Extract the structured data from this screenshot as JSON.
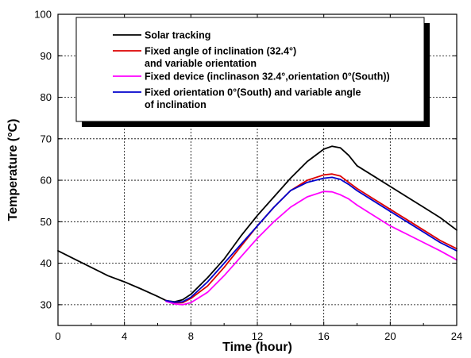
{
  "chart_data": {
    "type": "line",
    "xlabel": "Time (hour)",
    "ylabel": "Temperature (°C)",
    "xlim": [
      0,
      24
    ],
    "ylim": [
      25,
      100
    ],
    "xticks": [
      0,
      4,
      8,
      12,
      16,
      20,
      24
    ],
    "yticks": [
      30,
      40,
      50,
      60,
      70,
      80,
      90,
      100
    ],
    "grid": true,
    "legend_position": "top-right",
    "series": [
      {
        "name": "Solar tracking",
        "color": "#000000",
        "x": [
          0,
          1,
          2,
          3,
          4,
          5,
          6,
          6.5,
          7,
          7.5,
          8,
          9,
          10,
          11,
          12,
          13,
          14,
          15,
          16,
          16.5,
          17,
          17.5,
          18,
          19,
          20,
          21,
          22,
          23,
          24
        ],
        "y": [
          43,
          41,
          39,
          37,
          35.5,
          33.8,
          32,
          31,
          30.7,
          31.2,
          32.5,
          36.5,
          41,
          46.5,
          51.5,
          56,
          60.5,
          64.5,
          67.5,
          68.2,
          67.8,
          66,
          63.5,
          61,
          58.5,
          56,
          53.5,
          51,
          48
        ]
      },
      {
        "name": "Fixed angle of inclination (32.4°) and variable orientation",
        "color": "#dd0000",
        "x": [
          6.5,
          7,
          7.5,
          8,
          9,
          10,
          11,
          12,
          13,
          14,
          15,
          16,
          16.5,
          17,
          17.5,
          18,
          19,
          20,
          21,
          22,
          23,
          24
        ],
        "y": [
          31,
          30.5,
          30.5,
          31.5,
          34.5,
          39,
          44,
          49,
          53.5,
          57.5,
          60,
          61.3,
          61.5,
          61,
          59.5,
          58,
          55.5,
          53,
          50.5,
          48,
          45.5,
          43.5
        ]
      },
      {
        "name": "Fixed device (inclinason 32.4°,orientation 0°(South))",
        "color": "#ff00ff",
        "x": [
          6.5,
          7,
          7.5,
          8,
          9,
          10,
          11,
          12,
          13,
          14,
          15,
          16,
          16.5,
          17,
          17.5,
          18,
          19,
          20,
          21,
          22,
          23,
          24
        ],
        "y": [
          30.8,
          30.2,
          30,
          30.5,
          33,
          37,
          41.5,
          46,
          50,
          53.5,
          56,
          57.3,
          57.2,
          56.5,
          55.5,
          54,
          51.5,
          49,
          47,
          45,
          43,
          40.8
        ]
      },
      {
        "name": "Fixed orientation 0°(South) and variable angle of inclination",
        "color": "#0000cc",
        "x": [
          6.5,
          7,
          7.5,
          8,
          9,
          10,
          11,
          12,
          13,
          14,
          15,
          16,
          16.5,
          17,
          17.5,
          18,
          19,
          20,
          21,
          22,
          23,
          24
        ],
        "y": [
          31,
          30.6,
          30.7,
          31.8,
          35.5,
          40,
          44.5,
          49,
          53.5,
          57.5,
          59.5,
          60.5,
          60.7,
          60.2,
          59,
          57.5,
          55,
          52.5,
          50,
          47.5,
          45,
          43
        ]
      }
    ],
    "legend_lines": [
      [
        "Solar tracking"
      ],
      [
        "Fixed angle of inclination (32.4°)",
        "and variable orientation"
      ],
      [
        "Fixed device (inclinason 32.4°,orientation 0°(South))"
      ],
      [
        "Fixed orientation 0°(South) and variable angle",
        "of inclination"
      ]
    ]
  }
}
